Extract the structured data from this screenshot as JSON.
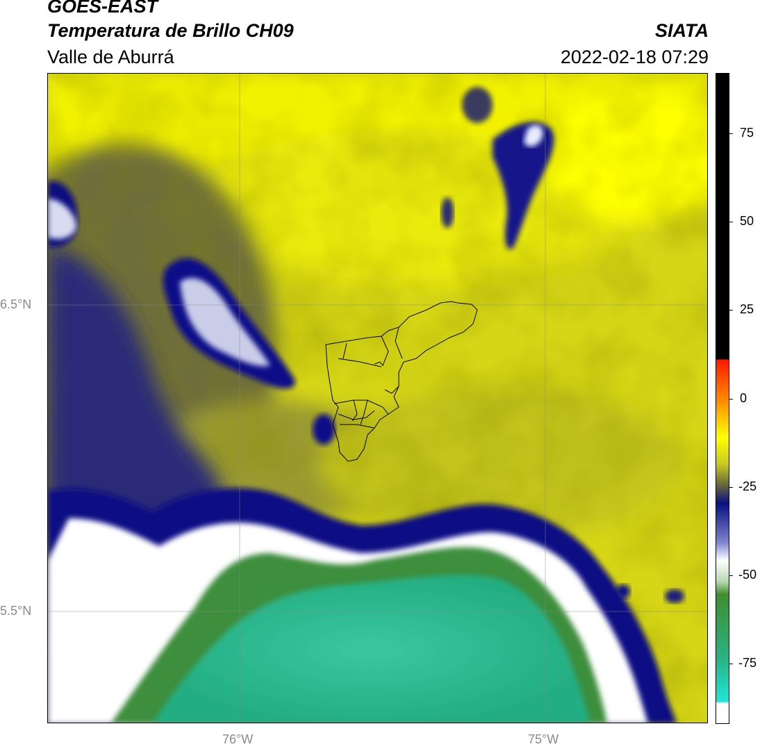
{
  "header": {
    "satellite": "GOES-EAST",
    "product": "Temperatura de Brillo CH09",
    "region": "Valle de Aburrá",
    "organization": "SIATA",
    "datetime": "2022-02-18 07:29"
  },
  "map": {
    "lat_labels": [
      "6.5°N",
      "5.5°N"
    ],
    "lon_labels": [
      "76°W",
      "75°W"
    ],
    "layers": [
      "brightness-temperature-field",
      "municipal-boundaries",
      "graticule"
    ]
  },
  "colorbar": {
    "ticks": [
      "75",
      "50",
      "25",
      "0",
      "-25",
      "-50",
      "-75"
    ],
    "tick_values": [
      75,
      50,
      25,
      0,
      -25,
      -50,
      -75
    ],
    "range": [
      -92,
      92
    ],
    "units_shown": false,
    "colors": {
      "cyan": "#1fe8d8",
      "sea_green": "#27b487",
      "green": "#3e8e2f",
      "white": "#ffffff",
      "light_blue": "#9aa6d8",
      "navy": "#0a1080",
      "olive": "#6b6b3a",
      "yellow": "#ffff00",
      "orange": "#ff8800",
      "red": "#ff1a00",
      "black": "#000000"
    }
  }
}
